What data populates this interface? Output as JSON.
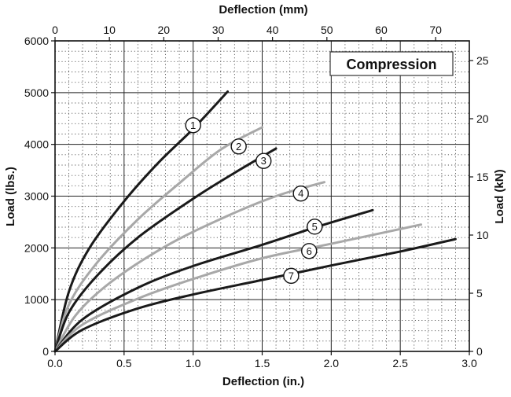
{
  "chart_data": {
    "type": "line",
    "xlabel": "Deflection (in.)",
    "ylabel": "Load (lbs.)",
    "x2label": "Deflection (mm)",
    "y2label": "Load (kN)",
    "xlim": [
      0,
      3.0
    ],
    "ylim": [
      0,
      6000
    ],
    "x2lim": [
      0,
      76.2
    ],
    "y2lim": [
      0,
      26.69
    ],
    "x_ticks": [
      "0.0",
      "0.5",
      "1.0",
      "1.5",
      "2.0",
      "2.5",
      "3.0"
    ],
    "y_ticks": [
      "0",
      "1000",
      "2000",
      "3000",
      "4000",
      "5000",
      "6000"
    ],
    "x2_ticks": [
      "0",
      "10",
      "20",
      "30",
      "40",
      "50",
      "60",
      "70"
    ],
    "y2_ticks": [
      "0",
      "5",
      "10",
      "15",
      "20",
      "25"
    ],
    "grid": true,
    "legend": {
      "text": "Compression",
      "placement": "top-right"
    },
    "series": [
      {
        "label": "1",
        "color": "#1a1a1a",
        "label_at": [
          1.0,
          4370
        ],
        "points": [
          [
            0,
            0
          ],
          [
            0.1,
            1150
          ],
          [
            0.25,
            2000
          ],
          [
            0.5,
            2900
          ],
          [
            0.75,
            3650
          ],
          [
            1.0,
            4300
          ],
          [
            1.25,
            5020
          ]
        ]
      },
      {
        "label": "2",
        "color": "#a8a8a8",
        "label_at": [
          1.33,
          3960
        ],
        "points": [
          [
            0,
            0
          ],
          [
            0.1,
            900
          ],
          [
            0.3,
            1700
          ],
          [
            0.6,
            2550
          ],
          [
            0.9,
            3250
          ],
          [
            1.2,
            3900
          ],
          [
            1.5,
            4330
          ]
        ]
      },
      {
        "label": "3",
        "color": "#1a1a1a",
        "label_at": [
          1.51,
          3680
        ],
        "points": [
          [
            0,
            0
          ],
          [
            0.1,
            750
          ],
          [
            0.3,
            1450
          ],
          [
            0.6,
            2200
          ],
          [
            1.0,
            2950
          ],
          [
            1.3,
            3450
          ],
          [
            1.6,
            3920
          ]
        ]
      },
      {
        "label": "4",
        "color": "#a8a8a8",
        "label_at": [
          1.78,
          3050
        ],
        "points": [
          [
            0,
            0
          ],
          [
            0.15,
            700
          ],
          [
            0.4,
            1330
          ],
          [
            0.8,
            2030
          ],
          [
            1.2,
            2560
          ],
          [
            1.6,
            3000
          ],
          [
            1.95,
            3270
          ]
        ]
      },
      {
        "label": "5",
        "color": "#1a1a1a",
        "label_at": [
          1.88,
          2410
        ],
        "points": [
          [
            0,
            0
          ],
          [
            0.2,
            620
          ],
          [
            0.6,
            1230
          ],
          [
            1.0,
            1650
          ],
          [
            1.5,
            2060
          ],
          [
            1.9,
            2410
          ],
          [
            2.3,
            2730
          ]
        ]
      },
      {
        "label": "6",
        "color": "#a8a8a8",
        "label_at": [
          1.84,
          1940
        ],
        "points": [
          [
            0,
            0
          ],
          [
            0.2,
            520
          ],
          [
            0.6,
            1020
          ],
          [
            1.0,
            1400
          ],
          [
            1.5,
            1800
          ],
          [
            2.0,
            2080
          ],
          [
            2.65,
            2450
          ]
        ]
      },
      {
        "label": "7",
        "color": "#1a1a1a",
        "label_at": [
          1.71,
          1460
        ],
        "points": [
          [
            0,
            0
          ],
          [
            0.2,
            420
          ],
          [
            0.6,
            830
          ],
          [
            1.0,
            1100
          ],
          [
            1.5,
            1380
          ],
          [
            2.0,
            1660
          ],
          [
            2.5,
            1930
          ],
          [
            2.9,
            2170
          ]
        ]
      }
    ]
  }
}
